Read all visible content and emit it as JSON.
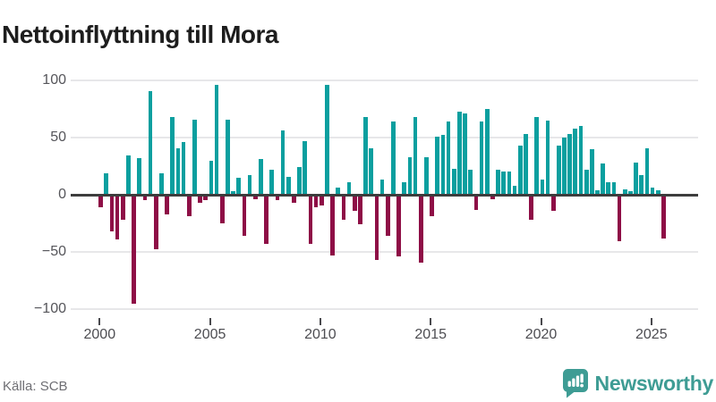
{
  "title": "Nettoinflyttning till Mora",
  "source": {
    "label": "Källa: SCB"
  },
  "brand": {
    "name": "Newsworthy",
    "icon": "newsworthy-speech-bubble-bar-chart-icon"
  },
  "colors": {
    "positive_bar": "#0b9f9f",
    "negative_bar": "#8e0e46",
    "zero_line": "#3d3d3d",
    "gridline": "#e7e7e9",
    "axis_text": "#55555a",
    "title_text": "#1d1d1d",
    "source_text": "#6e6e73",
    "brand_teal": "#3e9c94"
  },
  "chart_data": {
    "type": "bar",
    "title": "Nettoinflyttning till Mora",
    "xlabel": "",
    "ylabel": "",
    "frequency": "quarterly",
    "ylim": [
      -100,
      100
    ],
    "yticks": [
      100,
      50,
      0,
      -50,
      -100
    ],
    "ytick_labels": [
      "100",
      "50",
      "0",
      "−50",
      "−100"
    ],
    "xtick_labels": [
      "2000",
      "2005",
      "2010",
      "2015",
      "2020",
      "2025"
    ],
    "grid": "horizontal",
    "legend": "none",
    "positive_color": "#0b9f9f",
    "negative_color": "#8e0e46",
    "categories": [
      "2000 Q1",
      "2000 Q2",
      "2000 Q3",
      "2000 Q4",
      "2001 Q1",
      "2001 Q2",
      "2001 Q3",
      "2001 Q4",
      "2002 Q1",
      "2002 Q2",
      "2002 Q3",
      "2002 Q4",
      "2003 Q1",
      "2003 Q2",
      "2003 Q3",
      "2003 Q4",
      "2004 Q1",
      "2004 Q2",
      "2004 Q3",
      "2004 Q4",
      "2005 Q1",
      "2005 Q2",
      "2005 Q3",
      "2005 Q4",
      "2006 Q1",
      "2006 Q2",
      "2006 Q3",
      "2006 Q4",
      "2007 Q1",
      "2007 Q2",
      "2007 Q3",
      "2007 Q4",
      "2008 Q1",
      "2008 Q2",
      "2008 Q3",
      "2008 Q4",
      "2009 Q1",
      "2009 Q2",
      "2009 Q3",
      "2009 Q4",
      "2010 Q1",
      "2010 Q2",
      "2010 Q3",
      "2010 Q4",
      "2011 Q1",
      "2011 Q2",
      "2011 Q3",
      "2011 Q4",
      "2012 Q1",
      "2012 Q2",
      "2012 Q3",
      "2012 Q4",
      "2013 Q1",
      "2013 Q2",
      "2013 Q3",
      "2013 Q4",
      "2014 Q1",
      "2014 Q2",
      "2014 Q3",
      "2014 Q4",
      "2015 Q1",
      "2015 Q2",
      "2015 Q3",
      "2015 Q4",
      "2016 Q1",
      "2016 Q2",
      "2016 Q3",
      "2016 Q4",
      "2017 Q1",
      "2017 Q2",
      "2017 Q3",
      "2017 Q4",
      "2018 Q1",
      "2018 Q2",
      "2018 Q3",
      "2018 Q4",
      "2019 Q1",
      "2019 Q2",
      "2019 Q3",
      "2019 Q4",
      "2020 Q1",
      "2020 Q2",
      "2020 Q3",
      "2020 Q4",
      "2021 Q1",
      "2021 Q2",
      "2021 Q3",
      "2021 Q4",
      "2022 Q1",
      "2022 Q2",
      "2022 Q3",
      "2022 Q4",
      "2023 Q1",
      "2023 Q2",
      "2023 Q3",
      "2023 Q4",
      "2024 Q1",
      "2024 Q2",
      "2024 Q3",
      "2024 Q4",
      "2025 Q1",
      "2025 Q2",
      "2025 Q3"
    ],
    "values": [
      -11,
      19,
      -32,
      -39,
      -22,
      34,
      -95,
      32,
      -5,
      91,
      -48,
      19,
      -17,
      68,
      41,
      46,
      -19,
      66,
      -7,
      -5,
      30,
      96,
      -25,
      66,
      3,
      15,
      -36,
      17,
      -4,
      31,
      -43,
      22,
      -5,
      56,
      16,
      -7,
      24,
      47,
      -43,
      -11,
      -9,
      96,
      -53,
      6,
      -22,
      11,
      -14,
      -26,
      68,
      41,
      -57,
      13,
      -36,
      64,
      -54,
      11,
      33,
      68,
      -59,
      33,
      -19,
      51,
      52,
      64,
      23,
      73,
      71,
      22,
      -13,
      64,
      75,
      -4,
      22,
      20,
      20,
      8,
      43,
      53,
      -22,
      68,
      13,
      65,
      -14,
      43,
      50,
      53,
      58,
      60,
      22,
      40,
      4,
      27,
      11,
      11,
      -41,
      5,
      3,
      28,
      17,
      41,
      6,
      4,
      -38
    ]
  }
}
